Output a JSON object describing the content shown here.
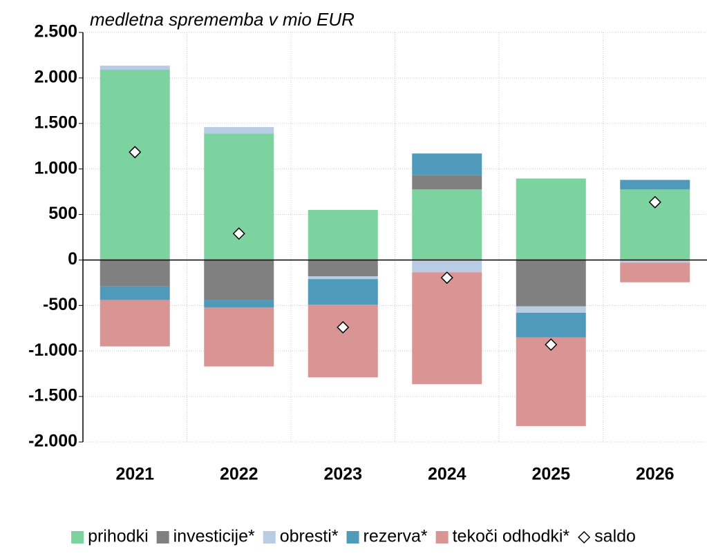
{
  "chart_data": {
    "type": "bar",
    "stacked": true,
    "subtitle": "medletna sprememba v mio EUR",
    "categories": [
      "2021",
      "2022",
      "2023",
      "2024",
      "2025",
      "2026"
    ],
    "series": [
      {
        "name": "prihodki",
        "color": "#7dd3a0",
        "values": [
          2090,
          1390,
          550,
          775,
          895,
          775
        ]
      },
      {
        "name": "investicije*",
        "color": "#808080",
        "values": [
          -290,
          -440,
          -180,
          160,
          -510,
          0
        ]
      },
      {
        "name": "obresti*",
        "color": "#b8cce4",
        "values": [
          45,
          70,
          -30,
          -135,
          -70,
          -30
        ]
      },
      {
        "name": "rezerva*",
        "color": "#4f9aba",
        "values": [
          -150,
          -80,
          -280,
          235,
          -270,
          105
        ]
      },
      {
        "name": "tekoči odhodki*",
        "color": "#d99594",
        "values": [
          -510,
          -650,
          -800,
          -1230,
          -975,
          -215
        ]
      },
      {
        "name": "saldo",
        "type": "scatter",
        "marker": "diamond",
        "color": "#ffffff",
        "values": [
          1185,
          290,
          -740,
          -195,
          -930,
          635
        ]
      }
    ],
    "ylim": [
      -2000,
      2500
    ],
    "yticks": [
      {
        "value": -2000,
        "label": "-2.000"
      },
      {
        "value": -1500,
        "label": "-1.500"
      },
      {
        "value": -1000,
        "label": "-1.000"
      },
      -500,
      0,
      500,
      {
        "value": 1000,
        "label": "1.000"
      },
      {
        "value": 1500,
        "label": "1.500"
      },
      {
        "value": 2000,
        "label": "2.000"
      },
      {
        "value": 2500,
        "label": "2.500"
      }
    ],
    "grid": true,
    "legend": "bottom"
  }
}
